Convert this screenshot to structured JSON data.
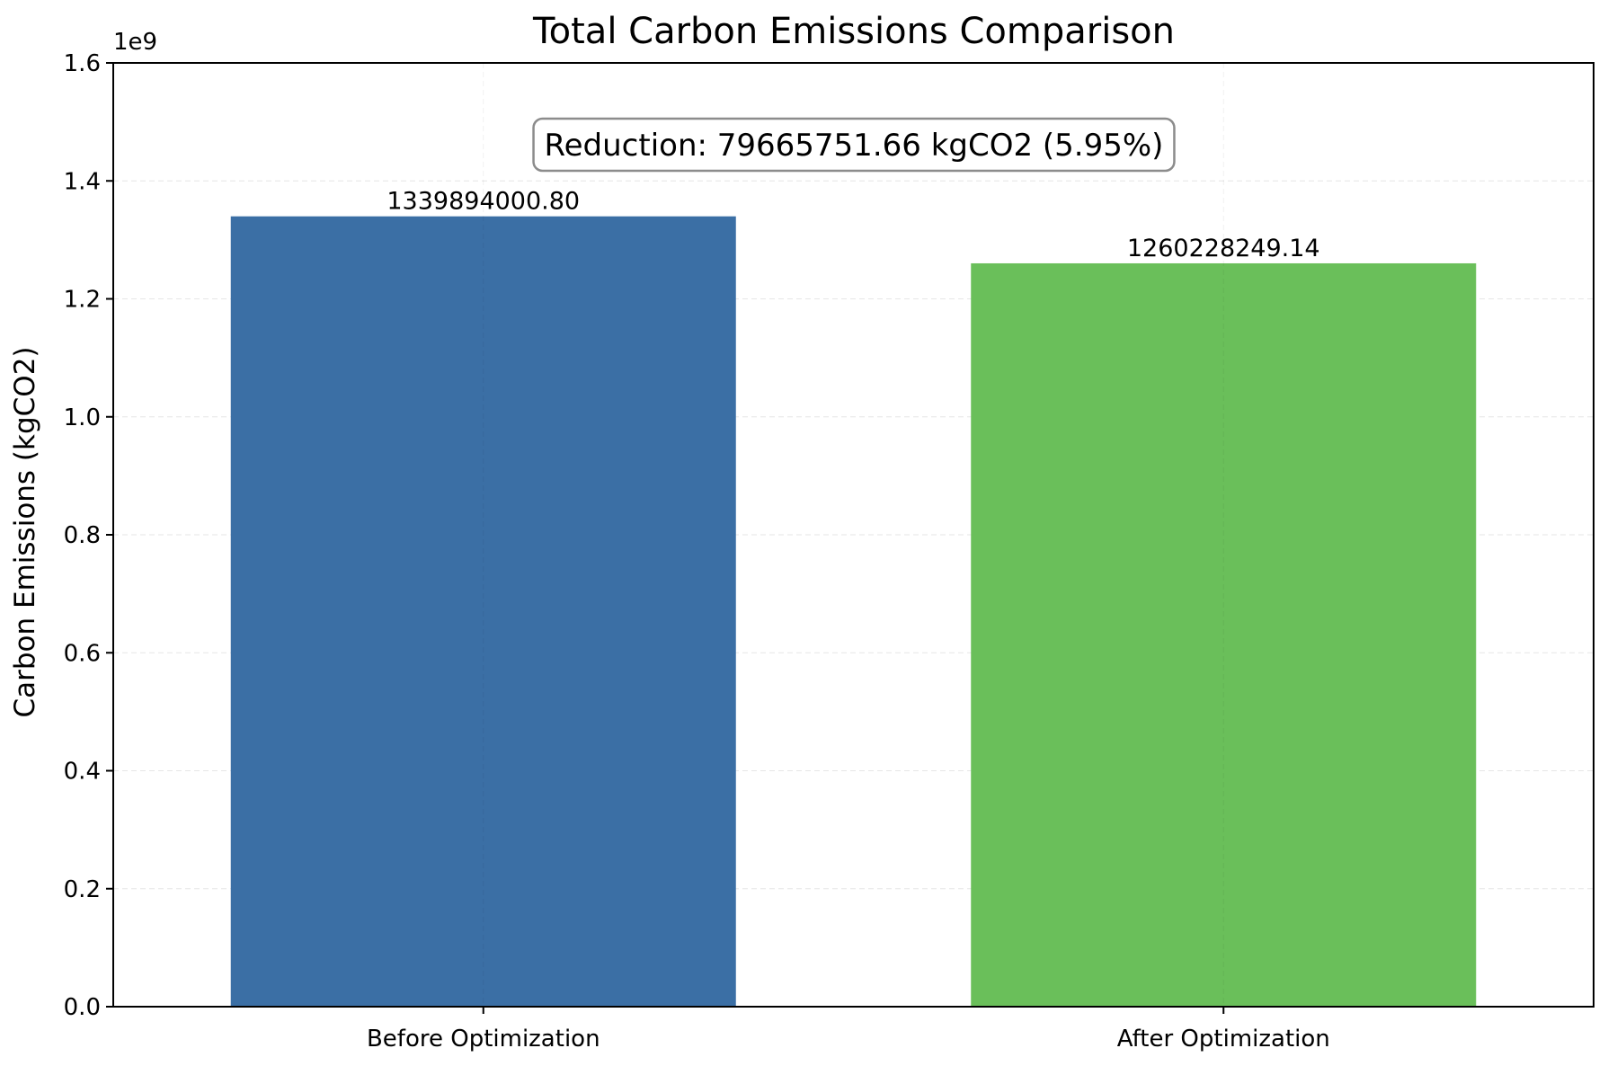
{
  "chart_data": {
    "type": "bar",
    "title": "Total Carbon Emissions Comparison",
    "xlabel": "",
    "ylabel": "Carbon Emissions (kgCO2)",
    "y_offset_label": "1e9",
    "y_scale": 1000000000,
    "ylim": [
      0,
      1.6
    ],
    "yticks": [
      0.0,
      0.2,
      0.4,
      0.6,
      0.8,
      1.0,
      1.2,
      1.4,
      1.6
    ],
    "ytick_labels": [
      "0.0",
      "0.2",
      "0.4",
      "0.6",
      "0.8",
      "1.0",
      "1.2",
      "1.4",
      "1.6"
    ],
    "categories": [
      "Before Optimization",
      "After Optimization"
    ],
    "values": [
      1339894000.8,
      1260228249.14
    ],
    "value_labels": [
      "1339894000.80",
      "1260228249.14"
    ],
    "colors": [
      "#3b6fa5",
      "#6abf5a"
    ],
    "grid": true,
    "annotation": "Reduction: 79665751.66 kgCO2 (5.95%)"
  }
}
